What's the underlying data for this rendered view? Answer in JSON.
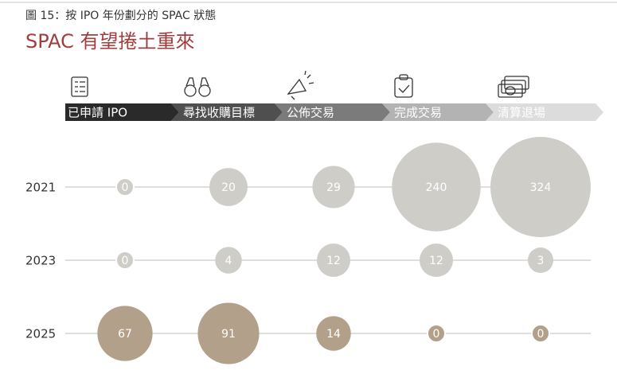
{
  "subtitle": "圖 15：按 IPO 年份劃分的 SPAC 狀態",
  "chart_data": {
    "type": "bubble",
    "title": "SPAC 有望捲土重來",
    "categories": [
      "已申請 IPO",
      "尋找收購目標",
      "公佈交易",
      "完成交易",
      "清算退場"
    ],
    "stage_colors": [
      "#2a2a2a",
      "#4f4f4f",
      "#7b7b7b",
      "#b3b3b3",
      "#dcdcdc"
    ],
    "series": [
      {
        "name": "2021",
        "color": "#cfcdc8",
        "values": [
          0,
          20,
          29,
          240,
          324
        ]
      },
      {
        "name": "2023",
        "color": "#cfcdc8",
        "values": [
          0,
          4,
          12,
          12,
          3
        ]
      },
      {
        "name": "2025",
        "color": "#b3a08a",
        "values": [
          67,
          91,
          14,
          0,
          0
        ]
      }
    ]
  }
}
